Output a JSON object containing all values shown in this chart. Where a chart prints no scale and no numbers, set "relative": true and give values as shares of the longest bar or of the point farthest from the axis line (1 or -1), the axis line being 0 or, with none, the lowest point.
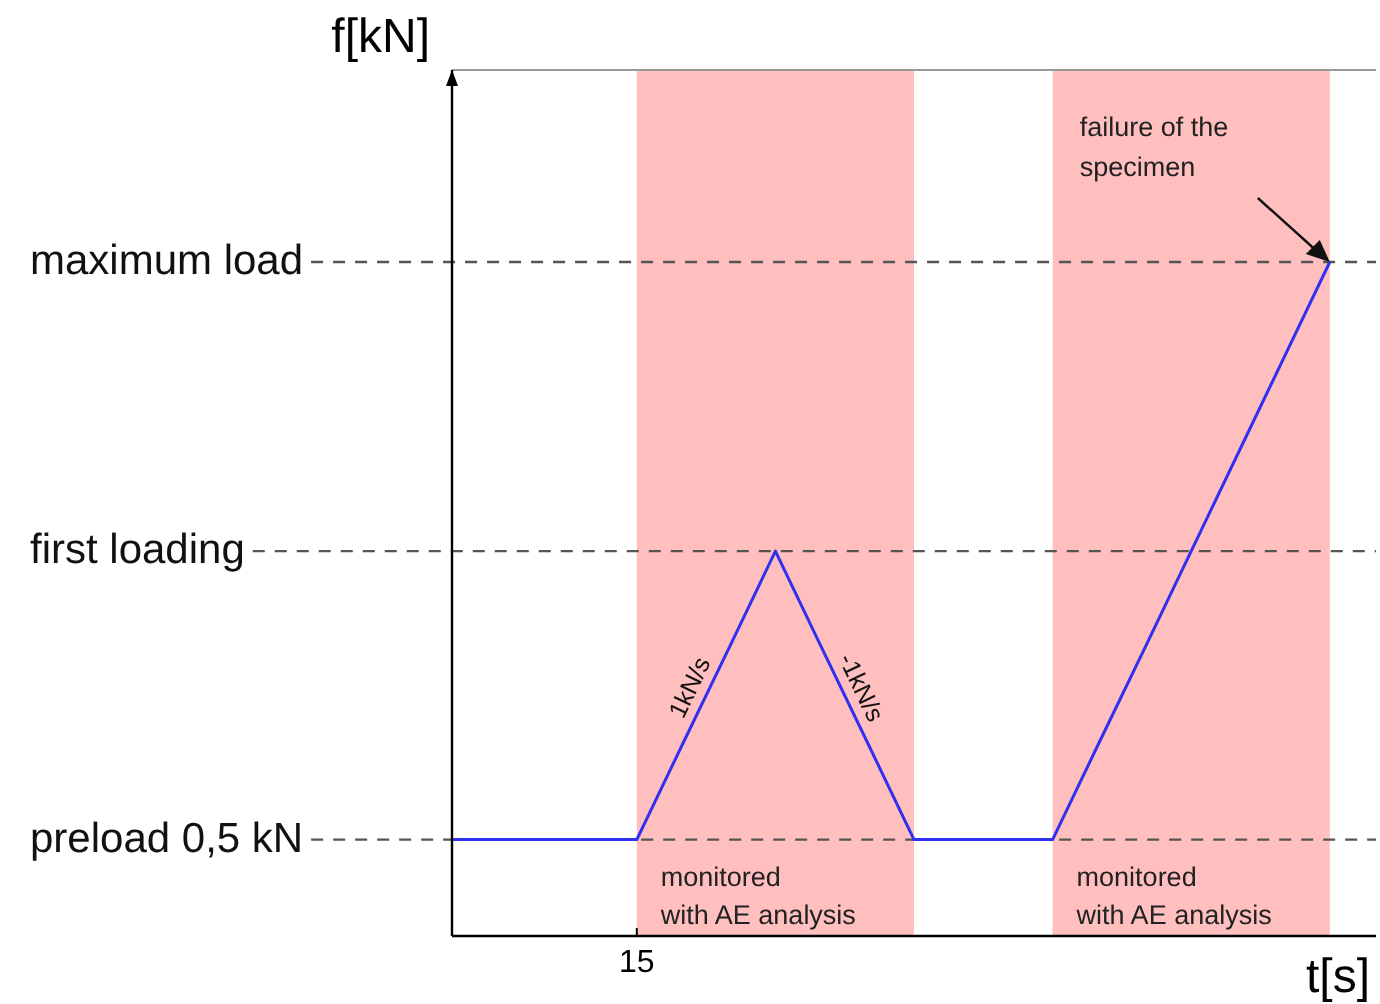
{
  "chart_data": {
    "type": "line",
    "relative": true,
    "xlabel": "t[s]",
    "ylabel": "f[kN]",
    "categories": [
      null,
      null,
      null,
      null,
      null,
      null,
      null,
      null,
      null,
      null,
      null,
      null,
      null,
      null,
      null,
      null,
      null,
      null,
      null,
      null,
      null
    ],
    "series": [
      {
        "color": "#3030f0",
        "values": [
          0.143,
          0.143,
          0.143,
          0.143,
          0.143,
          0.286,
          0.428,
          0.571,
          0.428,
          0.286,
          0.143,
          0.143,
          0.143,
          0.143,
          0.286,
          0.428,
          0.571,
          0.714,
          0.857,
          1,
          null
        ]
      }
    ],
    "marker": "none",
    "line_style": "solid",
    "ref_lines": [
      {
        "axis": "y",
        "value": 0.143,
        "label": "preload 0,5 kN",
        "line_style": "dashed",
        "color": "#555555"
      },
      {
        "axis": "y",
        "value": 0.571,
        "label": "first loading",
        "line_style": "dashed",
        "color": "#555555"
      },
      {
        "axis": "y",
        "value": 1,
        "label": "maximum load",
        "line_style": "dashed",
        "color": "#555555"
      }
    ],
    "annotations": [
      "15",
      "1kN/s",
      "-1kN/s",
      "failure of the\nspecimen",
      "monitored\nwith AE analysis",
      "monitored\nwith AE analysis"
    ]
  }
}
